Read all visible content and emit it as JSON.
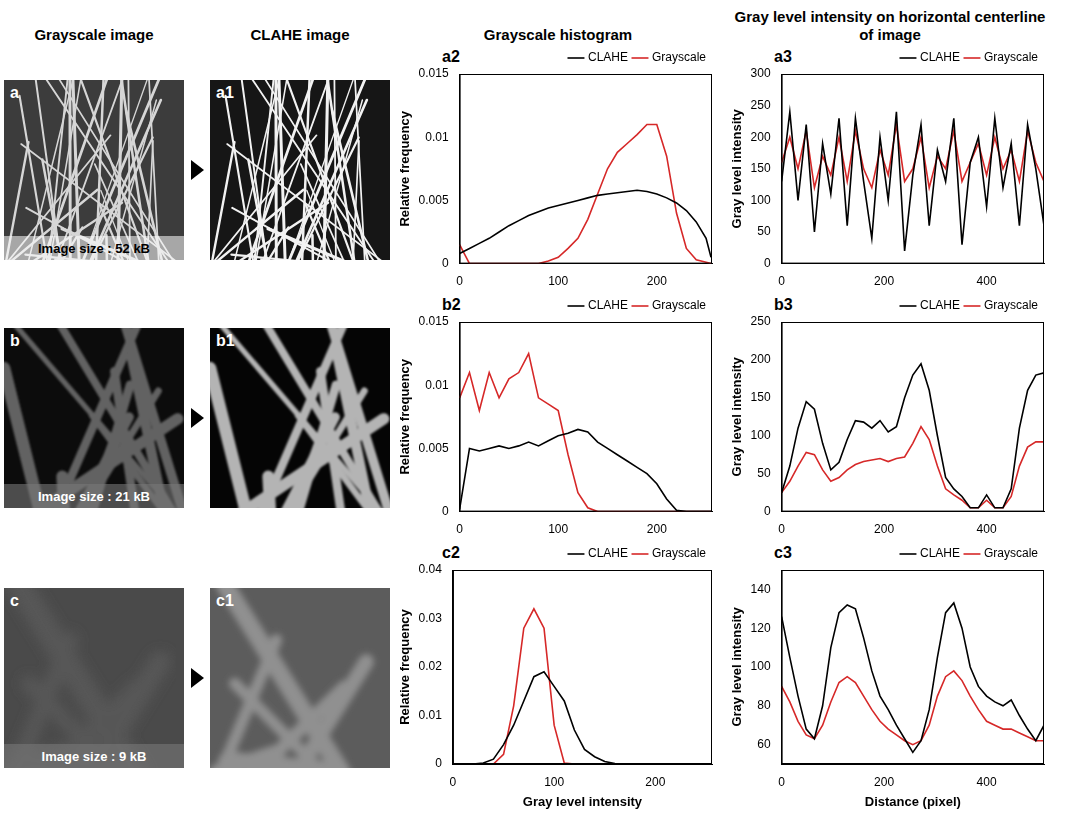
{
  "figure": {
    "column_titles": [
      "Grayscale image",
      "CLAHE image",
      "Grayscale histogram",
      "Gray level intensity on horizontal centerline of image"
    ],
    "rows": [
      {
        "image": {
          "label": "a",
          "caption": "Image size : 52 kB"
        },
        "clahe": {
          "label": "a1"
        }
      },
      {
        "image": {
          "label": "b",
          "caption": "Image size : 21 kB"
        },
        "clahe": {
          "label": "b1"
        }
      },
      {
        "image": {
          "label": "c",
          "caption": "Image size : 9 kB"
        },
        "clahe": {
          "label": "c1"
        }
      }
    ]
  },
  "chart_data": [
    {
      "panel": "a2",
      "type": "line",
      "y_label": "Relative frequency",
      "grid": false,
      "legend": "top-right",
      "x": [
        0,
        10,
        20,
        30,
        40,
        50,
        60,
        70,
        80,
        90,
        100,
        110,
        120,
        130,
        140,
        150,
        160,
        170,
        180,
        190,
        200,
        210,
        220,
        230,
        240,
        250,
        255
      ],
      "xlim": [
        0,
        256
      ],
      "xticks": [
        0,
        100,
        200
      ],
      "ylim": [
        0,
        0.015
      ],
      "yticks": [
        0,
        0.005,
        0.01,
        0.015
      ],
      "series": [
        {
          "name": "CLAHE",
          "color": "#000000",
          "values": [
            0.0008,
            0.0012,
            0.0016,
            0.002,
            0.0025,
            0.003,
            0.0034,
            0.0038,
            0.0041,
            0.0044,
            0.0046,
            0.0048,
            0.005,
            0.0052,
            0.0054,
            0.0055,
            0.0056,
            0.0057,
            0.0058,
            0.0057,
            0.0055,
            0.0052,
            0.0048,
            0.0042,
            0.0033,
            0.002,
            0.0005
          ]
        },
        {
          "name": "Grayscale",
          "color": "#d62828",
          "values": [
            0.0015,
            0,
            0,
            0,
            0,
            0,
            0,
            0,
            0,
            0.0002,
            0.0005,
            0.0012,
            0.002,
            0.0035,
            0.0055,
            0.0075,
            0.0088,
            0.0095,
            0.0102,
            0.011,
            0.011,
            0.0085,
            0.004,
            0.0012,
            0.0003,
            0.0001,
            0
          ]
        }
      ]
    },
    {
      "panel": "a3",
      "type": "line",
      "y_label": "Gray level intensity",
      "grid": false,
      "legend": "top-right",
      "x": [
        0,
        16,
        32,
        48,
        64,
        80,
        96,
        112,
        128,
        144,
        160,
        176,
        192,
        208,
        224,
        240,
        256,
        272,
        288,
        304,
        320,
        336,
        352,
        368,
        384,
        400,
        416,
        432,
        448,
        464,
        480,
        496,
        512
      ],
      "xlim": [
        0,
        512
      ],
      "xticks": [
        0,
        200,
        400
      ],
      "ylim": [
        0,
        300
      ],
      "yticks": [
        0,
        50,
        100,
        150,
        200,
        250,
        300
      ],
      "series": [
        {
          "name": "CLAHE",
          "color": "#000000",
          "values": [
            130,
            240,
            100,
            220,
            50,
            190,
            110,
            230,
            60,
            230,
            130,
            40,
            200,
            100,
            240,
            20,
            140,
            220,
            60,
            180,
            130,
            230,
            30,
            160,
            200,
            90,
            230,
            120,
            190,
            60,
            220,
            150,
            60
          ]
        },
        {
          "name": "Grayscale",
          "color": "#d62828",
          "values": [
            160,
            200,
            150,
            210,
            120,
            170,
            140,
            200,
            130,
            210,
            150,
            120,
            180,
            140,
            220,
            130,
            150,
            200,
            120,
            170,
            150,
            210,
            130,
            160,
            190,
            140,
            200,
            150,
            180,
            130,
            210,
            160,
            130
          ]
        }
      ]
    },
    {
      "panel": "b2",
      "type": "line",
      "y_label": "Relative frequency",
      "grid": false,
      "legend": "top-right",
      "x": [
        0,
        10,
        20,
        30,
        40,
        50,
        60,
        70,
        80,
        90,
        100,
        110,
        120,
        130,
        140,
        150,
        160,
        170,
        180,
        190,
        200,
        210,
        220,
        230,
        240,
        250,
        255
      ],
      "xlim": [
        0,
        256
      ],
      "xticks": [
        0,
        100,
        200
      ],
      "ylim": [
        0,
        0.015
      ],
      "yticks": [
        0,
        0.005,
        0.01,
        0.015
      ],
      "series": [
        {
          "name": "CLAHE",
          "color": "#000000",
          "values": [
            0.0002,
            0.005,
            0.0048,
            0.005,
            0.0052,
            0.005,
            0.0052,
            0.0055,
            0.0052,
            0.0056,
            0.006,
            0.0062,
            0.0065,
            0.0063,
            0.0055,
            0.005,
            0.0045,
            0.004,
            0.0035,
            0.003,
            0.0022,
            0.001,
            0.0001,
            0,
            0,
            0,
            0
          ]
        },
        {
          "name": "Grayscale",
          "color": "#d62828",
          "values": [
            0.009,
            0.011,
            0.008,
            0.011,
            0.009,
            0.0105,
            0.011,
            0.0125,
            0.009,
            0.0085,
            0.008,
            0.0045,
            0.0015,
            0.0003,
            0,
            0,
            0,
            0,
            0,
            0,
            0,
            0,
            0,
            0,
            0,
            0,
            0
          ]
        }
      ]
    },
    {
      "panel": "b3",
      "type": "line",
      "y_label": "Gray level intensity",
      "grid": false,
      "legend": "top-right",
      "x": [
        0,
        16,
        32,
        48,
        64,
        80,
        96,
        112,
        128,
        144,
        160,
        176,
        192,
        208,
        224,
        240,
        256,
        272,
        288,
        304,
        320,
        336,
        352,
        368,
        384,
        400,
        416,
        432,
        448,
        464,
        480,
        496,
        512
      ],
      "xlim": [
        0,
        512
      ],
      "xticks": [
        0,
        200,
        400
      ],
      "ylim": [
        0,
        250
      ],
      "yticks": [
        0,
        50,
        100,
        150,
        200,
        250
      ],
      "series": [
        {
          "name": "CLAHE",
          "color": "#000000",
          "values": [
            25,
            60,
            110,
            145,
            135,
            90,
            55,
            65,
            95,
            120,
            118,
            110,
            120,
            105,
            112,
            150,
            180,
            195,
            160,
            100,
            45,
            30,
            20,
            5,
            5,
            22,
            5,
            5,
            30,
            110,
            160,
            180,
            183
          ]
        },
        {
          "name": "Grayscale",
          "color": "#d62828",
          "values": [
            25,
            40,
            60,
            78,
            75,
            55,
            40,
            45,
            55,
            62,
            66,
            68,
            70,
            66,
            70,
            72,
            90,
            112,
            95,
            60,
            30,
            22,
            15,
            5,
            5,
            15,
            5,
            5,
            20,
            60,
            85,
            92,
            92
          ]
        }
      ]
    },
    {
      "panel": "c2",
      "type": "line",
      "x_label": "Gray level intensity",
      "y_label": "Relative frequency",
      "grid": false,
      "legend": "top-right",
      "x": [
        0,
        10,
        20,
        30,
        40,
        50,
        60,
        70,
        80,
        90,
        100,
        110,
        120,
        130,
        140,
        150,
        160,
        170,
        180,
        190,
        200,
        210,
        220,
        230,
        240,
        250,
        255
      ],
      "xlim": [
        0,
        256
      ],
      "xticks": [
        0,
        100,
        200
      ],
      "ylim": [
        0,
        0.04
      ],
      "yticks": [
        0,
        0.01,
        0.02,
        0.03,
        0.04
      ],
      "series": [
        {
          "name": "CLAHE",
          "color": "#000000",
          "values": [
            0,
            0,
            0,
            0.0002,
            0.001,
            0.004,
            0.008,
            0.013,
            0.018,
            0.019,
            0.016,
            0.013,
            0.007,
            0.003,
            0.0015,
            0.0005,
            0.0001,
            0,
            0,
            0,
            0,
            0,
            0,
            0,
            0,
            0,
            0
          ]
        },
        {
          "name": "Grayscale",
          "color": "#d62828",
          "values": [
            0,
            0,
            0,
            0,
            0,
            0.002,
            0.012,
            0.028,
            0.032,
            0.028,
            0.008,
            0.0002,
            0,
            0,
            0,
            0,
            0,
            0,
            0,
            0,
            0,
            0,
            0,
            0,
            0,
            0,
            0
          ]
        }
      ]
    },
    {
      "panel": "c3",
      "type": "line",
      "x_label": "Distance (pixel)",
      "y_label": "Gray level intensity",
      "grid": false,
      "legend": "top-right",
      "x": [
        0,
        16,
        32,
        48,
        64,
        80,
        96,
        112,
        128,
        144,
        160,
        176,
        192,
        208,
        224,
        240,
        256,
        272,
        288,
        304,
        320,
        336,
        352,
        368,
        384,
        400,
        416,
        432,
        448,
        464,
        480,
        496,
        512
      ],
      "xlim": [
        0,
        512
      ],
      "xticks": [
        0,
        200,
        400
      ],
      "ylim": [
        50,
        150
      ],
      "yticks": [
        60,
        80,
        100,
        120,
        140
      ],
      "series": [
        {
          "name": "CLAHE",
          "color": "#000000",
          "values": [
            126,
            105,
            85,
            68,
            63,
            80,
            110,
            128,
            132,
            130,
            115,
            98,
            85,
            78,
            70,
            63,
            56,
            62,
            78,
            105,
            128,
            133,
            120,
            100,
            90,
            85,
            82,
            80,
            83,
            75,
            68,
            62,
            70
          ]
        },
        {
          "name": "Grayscale",
          "color": "#d62828",
          "values": [
            90,
            82,
            72,
            65,
            63,
            70,
            82,
            92,
            95,
            92,
            85,
            78,
            72,
            68,
            65,
            62,
            60,
            62,
            70,
            85,
            95,
            98,
            93,
            85,
            78,
            72,
            70,
            68,
            68,
            66,
            64,
            62,
            62
          ]
        }
      ]
    }
  ]
}
